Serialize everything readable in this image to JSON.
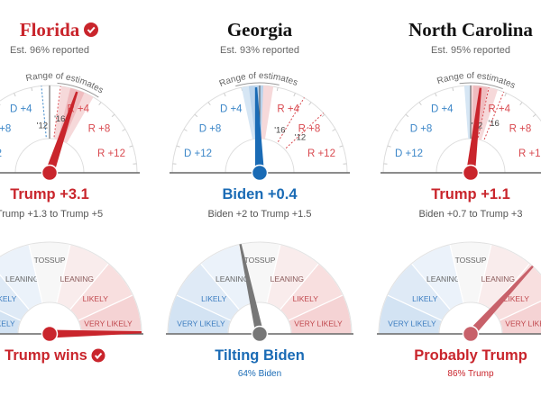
{
  "colors": {
    "red": "#c9252c",
    "blue": "#1a6bb5",
    "gray": "#777777",
    "pink_needle": "#c8616a"
  },
  "scale_labels": [
    "D +12",
    "D +8",
    "D +4",
    "R +4",
    "R +8",
    "R +12"
  ],
  "range_label": "Range of estimates",
  "likelihood_labels": [
    "VERY LIKELY",
    "LIKELY",
    "LEANING",
    "TOSSUP",
    "LEANING",
    "LIKELY",
    "VERY LIKELY"
  ],
  "states": [
    {
      "name": "Florida",
      "called": true,
      "called_icon": "check-circle-icon",
      "reported": "Est. 96% reported",
      "margin": 3.1,
      "range": [
        1.3,
        5
      ],
      "past": [
        {
          "label": "'12",
          "value": -0.9
        },
        {
          "label": "'16",
          "value": 1.2
        }
      ],
      "margin_label": "Trump +3.1",
      "range_text": "Trump +1.3 to Trump +5",
      "leader_color": "red",
      "trump_probability": 99.9,
      "outcome": "Trump wins",
      "outcome_icon": "check-circle-icon",
      "outcome_sub": "",
      "outcome_color": "red",
      "prob_needle": "red"
    },
    {
      "name": "Georgia",
      "called": false,
      "reported": "Est. 93% reported",
      "margin": -0.4,
      "range": [
        -2,
        1.5
      ],
      "past": [
        {
          "label": "'16",
          "value": 5.1
        },
        {
          "label": "'12",
          "value": 7.8
        }
      ],
      "margin_label": "Biden +0.4",
      "range_text": "Biden +2 to Trump +1.5",
      "leader_color": "blue",
      "trump_probability": 36,
      "outcome": "Tilting Biden",
      "outcome_sub": "64% Biden",
      "outcome_color": "blue",
      "prob_needle": "gray"
    },
    {
      "name": "North Carolina",
      "called": false,
      "reported": "Est. 95% reported",
      "margin": 1.1,
      "range": [
        -0.7,
        3
      ],
      "past": [
        {
          "label": "'12",
          "value": 2.0
        },
        {
          "label": "'16",
          "value": 3.7
        }
      ],
      "margin_label": "Trump +1.1",
      "range_text": "Biden +0.7 to Trump +3",
      "leader_color": "red",
      "trump_probability": 86,
      "outcome": "Probably Trump",
      "outcome_sub": "86% Trump",
      "outcome_color": "red",
      "prob_needle": "pink_needle"
    }
  ]
}
